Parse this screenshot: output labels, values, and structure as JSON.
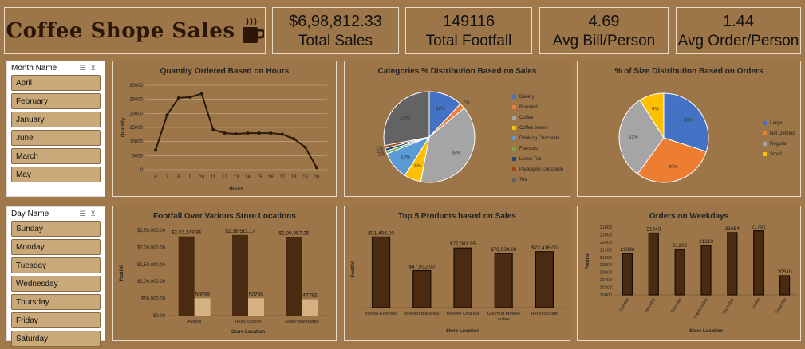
{
  "header": {
    "title": "Coffee Shope Sales"
  },
  "kpis": [
    {
      "value": "$6,98,812.33",
      "label": "Total Sales"
    },
    {
      "value": "149116",
      "label": "Total Footfall"
    },
    {
      "value": "4.69",
      "label": "Avg Bill/Person"
    },
    {
      "value": "1.44",
      "label": "Avg Order/Person"
    }
  ],
  "month_slicer": {
    "title": "Month Name",
    "items": [
      "April",
      "February",
      "January",
      "June",
      "March",
      "May"
    ]
  },
  "day_slicer": {
    "title": "Day Name",
    "items": [
      "Sunday",
      "Monday",
      "Tuesday",
      "Wednesday",
      "Thursday",
      "Friday",
      "Saturday"
    ]
  },
  "colors": {
    "background": "#a0784a",
    "bar_dark": "#4a2a10",
    "bar_light": "#d3b183",
    "line": "#2a1a0a",
    "slicer_item": "#c9a97a"
  },
  "chart_data": [
    {
      "type": "line",
      "title": "Quantity Ordered Based on Hours",
      "xlabel": "Hours",
      "ylabel": "Quantity",
      "x": [
        6,
        7,
        8,
        9,
        10,
        11,
        12,
        13,
        14,
        15,
        16,
        17,
        18,
        19,
        20
      ],
      "values": [
        7000,
        19500,
        25500,
        25800,
        27000,
        14200,
        13000,
        12700,
        13000,
        13000,
        13000,
        12600,
        11000,
        8000,
        700
      ],
      "ylim": [
        0,
        30000
      ],
      "yticks": [
        "0",
        "5000",
        "10000",
        "15000",
        "20000",
        "25000",
        "30000"
      ],
      "grid": true
    },
    {
      "type": "pie",
      "title": "Categories % Distribution Based on Sales",
      "legend": [
        "Bakery",
        "Branded",
        "Coffee",
        "Coffee beans",
        "Drinking Chocolate",
        "Flavours",
        "Loose Tea",
        "Packaged Chocolate",
        "Tea"
      ],
      "values": [
        12,
        2,
        39,
        6,
        10,
        1,
        1,
        1,
        28
      ],
      "labels": [
        "12%",
        "2%",
        "39%",
        "6%",
        "10%",
        "1%",
        "1%",
        "1%",
        "28%"
      ],
      "colors": [
        "#4472c4",
        "#ed7d31",
        "#a5a5a5",
        "#ffc000",
        "#5b9bd5",
        "#70ad47",
        "#264478",
        "#9e480e",
        "#636363"
      ]
    },
    {
      "type": "pie",
      "title": "% of Size Distribution Based on Orders",
      "legend": [
        "Large",
        "Not Defined",
        "Regular",
        "Small"
      ],
      "values": [
        30,
        30,
        31,
        9
      ],
      "labels": [
        "30%",
        "30%",
        "31%",
        "9%"
      ],
      "colors": [
        "#4472c4",
        "#ed7d31",
        "#a5a5a5",
        "#ffc000"
      ]
    },
    {
      "type": "bar",
      "title": "Footfall Over Various Store Locations",
      "xlabel": "Store Location",
      "ylabel": "Footfall",
      "categories": [
        "Astoria",
        "Hell's Kitchen",
        "Lower Manhattan"
      ],
      "series": [
        {
          "values": [
            232243.91,
            236511.17,
            230057.25
          ],
          "labels": [
            "$2,32,243.91",
            "$2,36,511.17",
            "$2,30,057.25"
          ]
        },
        {
          "values": [
            50599,
            50735,
            47782
          ],
          "labels": [
            "50599",
            "50735",
            "47782"
          ]
        }
      ],
      "ylim": [
        0,
        250000
      ],
      "yticks": [
        "$0.00",
        "$50,000.00",
        "$1,00,000.00",
        "$1,50,000.00",
        "$2,00,000.00",
        "$2,50,000.00"
      ]
    },
    {
      "type": "bar",
      "title": "Top 5 Products based on Sales",
      "xlabel": "Store Location",
      "ylabel": "Footfall",
      "categories": [
        "Barista Espresso",
        "Brewed Black tea",
        "Brewed Chai tea",
        "Gourmet brewed coffee",
        "Hot chocolate"
      ],
      "values": [
        91406.2,
        47932.0,
        77081.95,
        70034.6,
        72416.0
      ],
      "labels": [
        "$91,406.20",
        "$47,932.00",
        "$77,081.95",
        "$70,034.60",
        "$72,416.00"
      ],
      "ylim": [
        0,
        100000
      ]
    },
    {
      "type": "bar",
      "title": "Orders on Weekdays",
      "xlabel": "Store Location",
      "ylabel": "Footfall",
      "categories": [
        "Sunday",
        "Monday",
        "Tuesday",
        "Wednesday",
        "Thursday",
        "Friday",
        "Saturday"
      ],
      "values": [
        21096,
        21643,
        21202,
        21310,
        21654,
        21701,
        20510
      ],
      "labels": [
        "21096",
        "21643",
        "21202",
        "21310",
        "21654",
        "21701",
        "20510"
      ],
      "ylim": [
        20000,
        21800
      ],
      "yticks": [
        "20000",
        "20200",
        "20400",
        "20600",
        "20800",
        "21000",
        "21200",
        "21400",
        "21600",
        "21800"
      ]
    }
  ]
}
